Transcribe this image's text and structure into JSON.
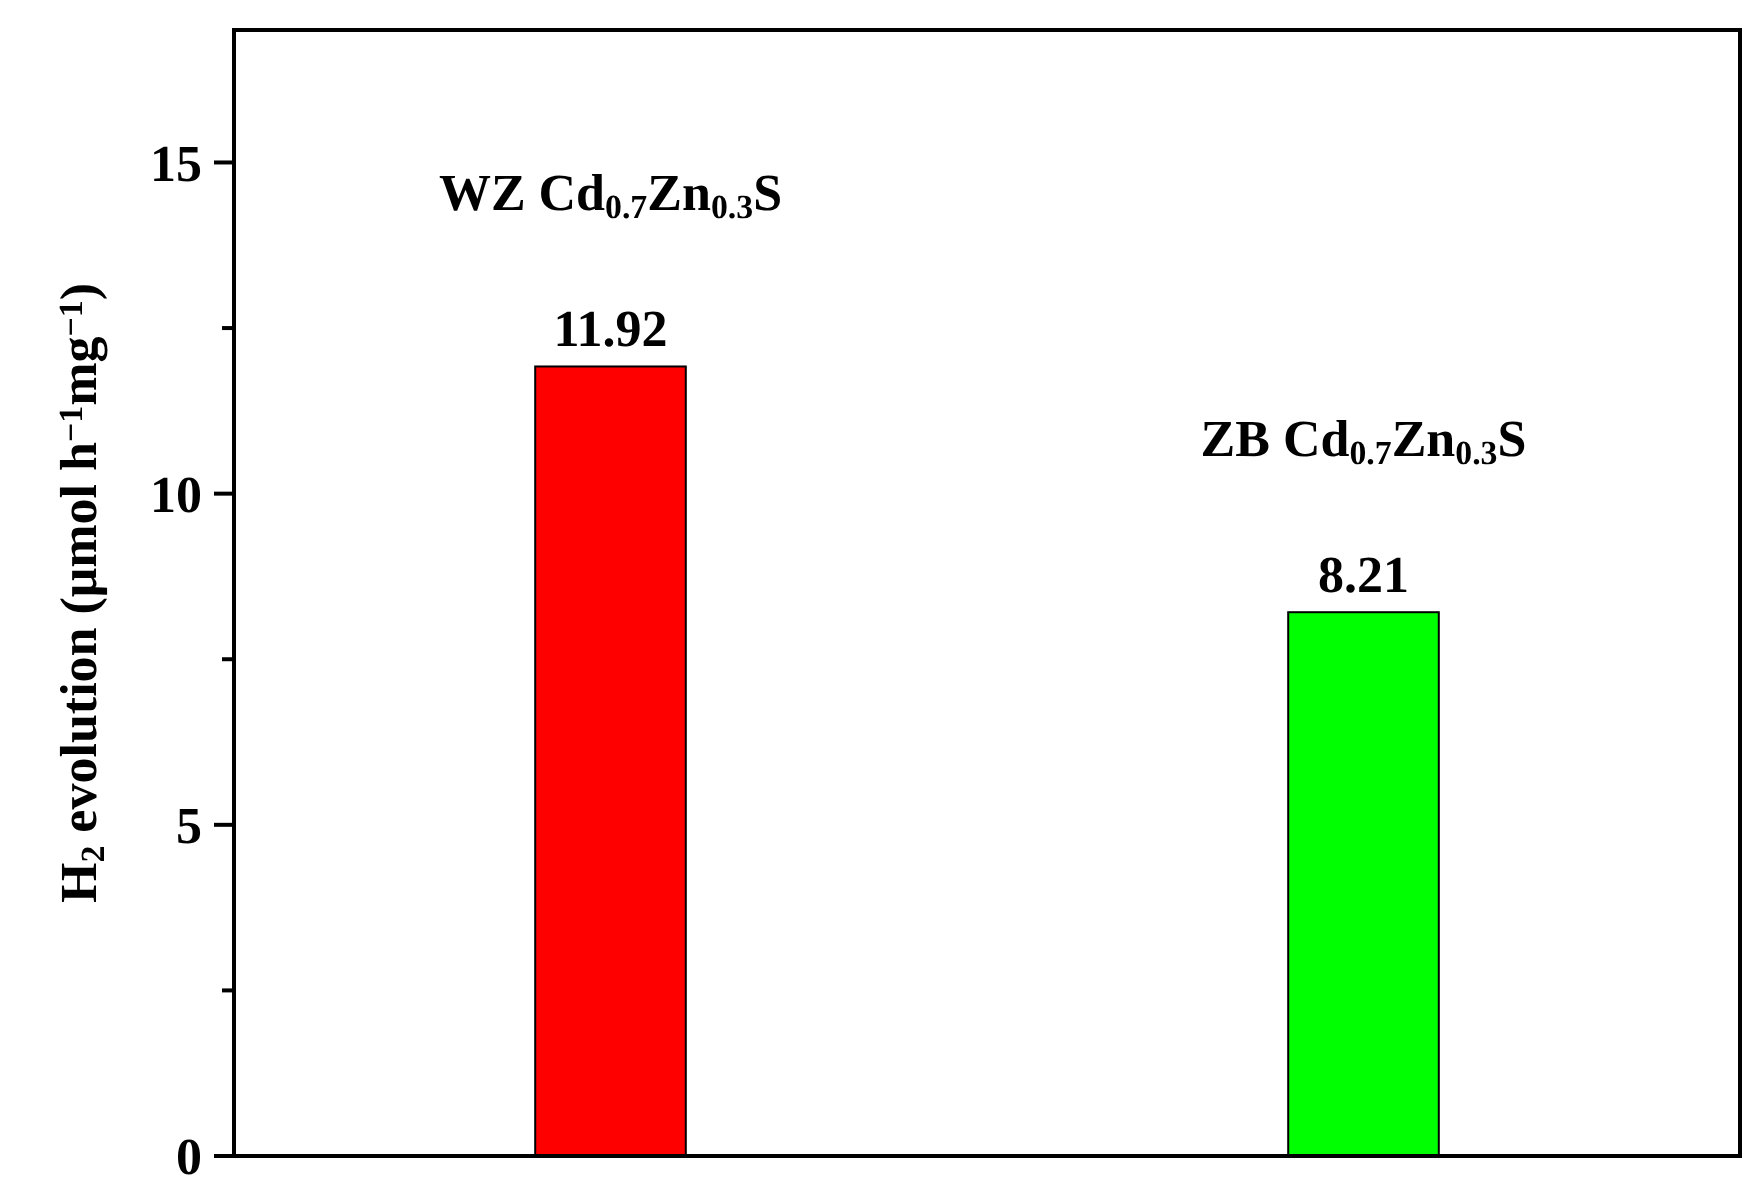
{
  "chart_data": {
    "type": "bar",
    "ylabel": "H$_{2}$ evolution (μmol h$^{−1}$mg$^{−1}$)",
    "categories": [
      "WZ Cd$_{0.7}$Zn$_{0.3}$S",
      "ZB Cd$_{0.7}$Zn$_{0.3}$S"
    ],
    "values": [
      11.92,
      8.21
    ],
    "colors": [
      "#ff0000",
      "#00ff00"
    ],
    "ylim": [
      0,
      17
    ],
    "yticks": [
      0,
      {
        "value": 2.5,
        "label": null
      },
      5,
      {
        "value": 7.5,
        "label": null
      },
      10,
      {
        "value": 12.5,
        "label": null
      },
      15
    ],
    "data_labels": true
  }
}
